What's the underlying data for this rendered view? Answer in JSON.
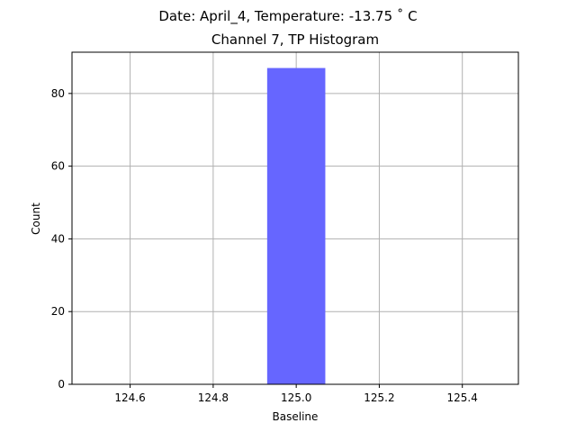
{
  "chart_data": {
    "type": "bar",
    "suptitle": "Date: April_4, Temperature: -13.75 ˚ C",
    "title": "Channel 7, TP Histogram",
    "xlabel": "Baseline",
    "ylabel": "Count",
    "xlim": [
      124.46,
      125.535
    ],
    "ylim": [
      0,
      91.35
    ],
    "xticks": [
      124.6,
      124.8,
      125.0,
      125.2,
      125.4
    ],
    "xtick_labels": [
      "124.6",
      "124.8",
      "125.0",
      "125.2",
      "125.4"
    ],
    "yticks": [
      0,
      20,
      40,
      60,
      80
    ],
    "ytick_labels": [
      "0",
      "20",
      "40",
      "60",
      "80"
    ],
    "grid": true,
    "bars": [
      {
        "x_start": 124.93,
        "x_end": 125.07,
        "value": 87
      }
    ],
    "bar_color": "#6666ff"
  }
}
